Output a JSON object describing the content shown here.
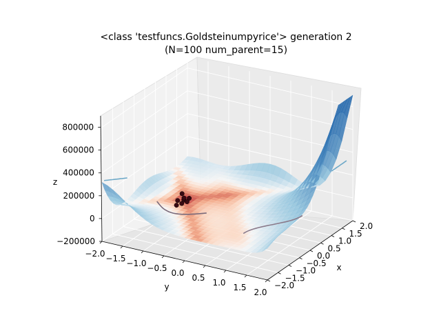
{
  "chart_data": {
    "type": "surface3d",
    "title_line1": "<class 'testfuncs.Goldsteinumpyrice'> generation 2",
    "title_line2": "(N=100 num_parent=15)",
    "xlabel": "x",
    "ylabel": "y",
    "zlabel": "z",
    "x_ticks": [
      "−2.0",
      "−1.5",
      "−1.0",
      "−0.5",
      "0.0",
      "0.5",
      "1.0",
      "1.5",
      "2.0"
    ],
    "y_ticks": [
      "−2.0",
      "−1.5",
      "−1.0",
      "−0.5",
      "0.0",
      "0.5",
      "1.0",
      "1.5",
      "2.0"
    ],
    "z_ticks": [
      "−200000",
      "0",
      "200000",
      "400000",
      "600000",
      "800000"
    ],
    "xlim": [
      -2.0,
      2.0
    ],
    "ylim": [
      -2.0,
      2.0
    ],
    "zlim": [
      -200000,
      900000
    ],
    "population_points": [
      {
        "x": 0.1,
        "y": -1.0,
        "z": 3
      },
      {
        "x": 0.0,
        "y": -1.05,
        "z": 5
      },
      {
        "x": -0.05,
        "y": -0.95,
        "z": 8
      },
      {
        "x": 0.15,
        "y": -0.9,
        "z": 12
      },
      {
        "x": 0.2,
        "y": -1.1,
        "z": 20
      },
      {
        "x": 0.3,
        "y": -0.95,
        "z": 30
      },
      {
        "x": 0.45,
        "y": -1.0,
        "z": 60
      },
      {
        "x": -0.2,
        "y": -1.2,
        "z": 120
      }
    ],
    "colormap": "RdBu",
    "grid": true
  }
}
